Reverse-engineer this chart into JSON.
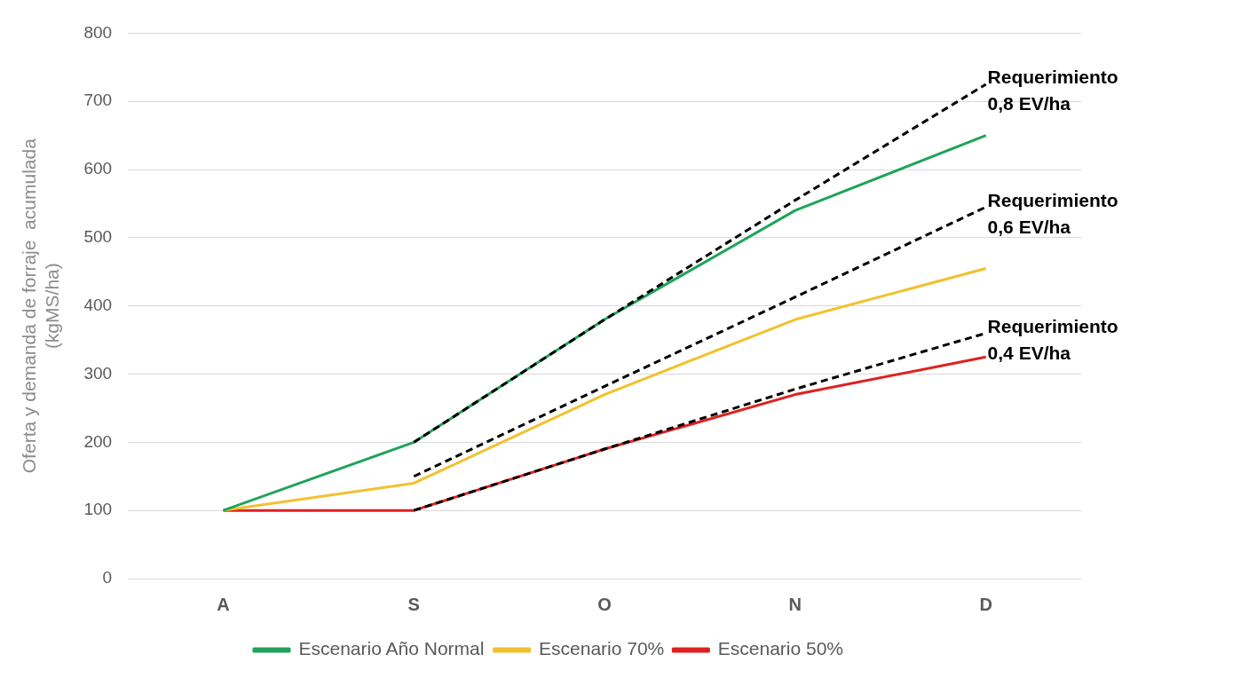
{
  "chart_data": {
    "type": "line",
    "ylabel": "Oferta y demanda de forraje  acumulada\n(kgMS/ha)",
    "categories": [
      "A",
      "S",
      "O",
      "N",
      "D"
    ],
    "series": [
      {
        "name": "Escenario Año Normal",
        "color": "#1ea35a",
        "values": [
          100,
          200,
          380,
          540,
          650
        ]
      },
      {
        "name": "Escenario 70%",
        "color": "#f2c12e",
        "values": [
          100,
          140,
          270,
          380,
          455
        ]
      },
      {
        "name": "Escenario 50%",
        "color": "#e02020",
        "values": [
          100,
          100,
          190,
          270,
          325
        ]
      },
      {
        "color": "#000000",
        "line_style": "dashed",
        "values": [
          null,
          200,
          380,
          555,
          725
        ]
      },
      {
        "color": "#000000",
        "line_style": "dashed",
        "values": [
          null,
          150,
          282,
          413,
          545
        ]
      },
      {
        "color": "#000000",
        "line_style": "dashed",
        "values": [
          null,
          100,
          190,
          278,
          360
        ]
      }
    ],
    "ylim": [
      0,
      800
    ],
    "yticks": [
      0,
      100,
      200,
      300,
      400,
      500,
      600,
      700,
      800
    ],
    "grid": "y",
    "legend": "bottom",
    "marker": "none",
    "line_style": "solid",
    "annotations": [
      {
        "text": "Requerimiento\n0,8 EV/ha",
        "x": "D",
        "y": 725
      },
      {
        "text": "Requerimiento\n0,6 EV/ha",
        "x": "D",
        "y": 545
      },
      {
        "text": "Requerimiento\n0,4 EV/ha",
        "x": "D",
        "y": 360
      }
    ]
  }
}
